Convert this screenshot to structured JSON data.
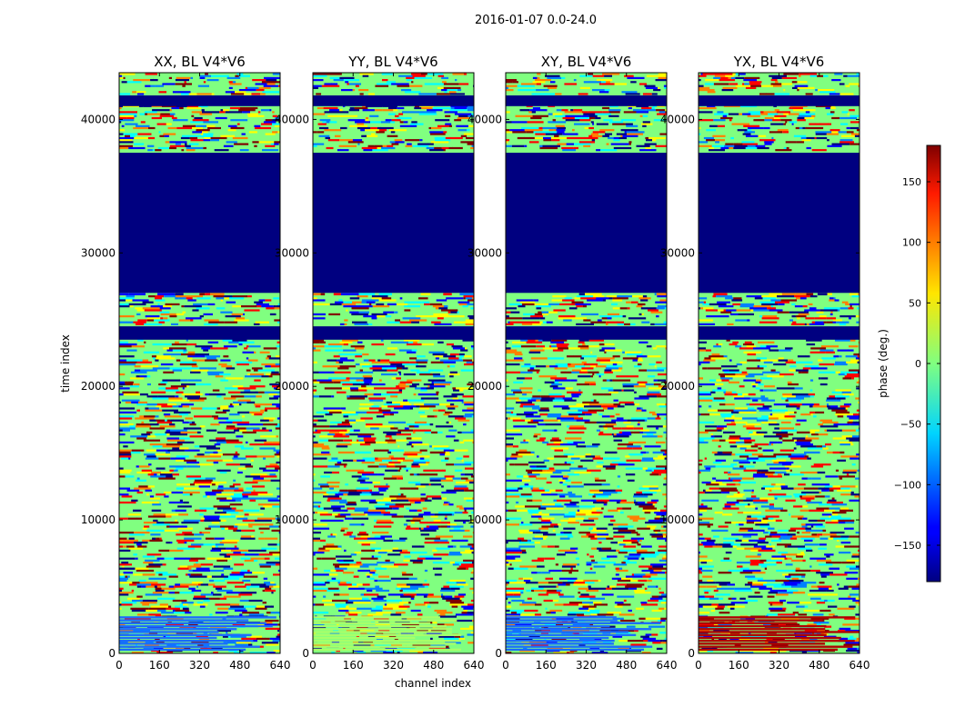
{
  "chart_data": {
    "type": "heatmap",
    "suptitle": "2016-01-07 0.0-24.0",
    "xlabel": "channel index",
    "ylabel": "time index",
    "xlim": [
      0,
      640
    ],
    "ylim": [
      0,
      43500
    ],
    "xticks": [
      0,
      160,
      320,
      480,
      640
    ],
    "yticks": [
      0,
      10000,
      20000,
      30000,
      40000
    ],
    "panels": [
      {
        "title": "XX, BL V4*V6",
        "low_band_color": "#1a6cff"
      },
      {
        "title": "YY, BL V4*V6",
        "low_band_color": "#a8ff6a"
      },
      {
        "title": "XY, BL V4*V6",
        "low_band_color": "#1a6cff"
      },
      {
        "title": "YX, BL V4*V6",
        "low_band_color": "#b00000"
      }
    ],
    "colorbar": {
      "label": "phase (deg.)",
      "range": [
        -180,
        180
      ],
      "ticks": [
        -150,
        -100,
        -50,
        0,
        50,
        100,
        150
      ],
      "colormap": "jet"
    },
    "dominant_value_color": "#80ff80",
    "flagged_value_color": "#000080",
    "flagged_time_ranges": [
      [
        27000,
        37500
      ],
      [
        23500,
        24500
      ],
      [
        41000,
        41800
      ]
    ]
  }
}
